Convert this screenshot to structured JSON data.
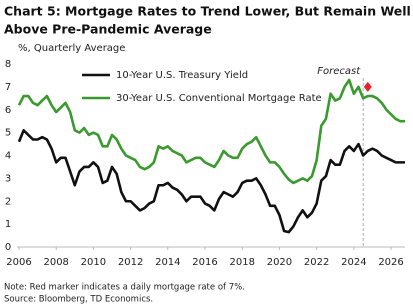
{
  "chart_data": {
    "type": "line",
    "title": [
      "Chart 5: Mortgage Rates to Trend Lower, But Remain Well",
      "Above Pre-Pandemic Average"
    ],
    "subtitle": "%, Quarterly Average",
    "notes": [
      "Note: Red marker indicates a daily mortgage rate of 7%.",
      "Source:  Bloomberg, TD Economics."
    ],
    "x": [
      2006,
      2006.25,
      2006.5,
      2006.75,
      2007,
      2007.25,
      2007.5,
      2007.75,
      2008,
      2008.25,
      2008.5,
      2008.75,
      2009,
      2009.25,
      2009.5,
      2009.75,
      2010,
      2010.25,
      2010.5,
      2010.75,
      2011,
      2011.25,
      2011.5,
      2011.75,
      2012,
      2012.25,
      2012.5,
      2012.75,
      2013,
      2013.25,
      2013.5,
      2013.75,
      2014,
      2014.25,
      2014.5,
      2014.75,
      2015,
      2015.25,
      2015.5,
      2015.75,
      2016,
      2016.25,
      2016.5,
      2016.75,
      2017,
      2017.25,
      2017.5,
      2017.75,
      2018,
      2018.25,
      2018.5,
      2018.75,
      2019,
      2019.25,
      2019.5,
      2019.75,
      2020,
      2020.25,
      2020.5,
      2020.75,
      2021,
      2021.25,
      2021.5,
      2021.75,
      2022,
      2022.25,
      2022.5,
      2022.75,
      2023,
      2023.25,
      2023.5,
      2023.75,
      2024,
      2024.25,
      2024.5,
      2024.75,
      2025,
      2025.25,
      2025.5,
      2025.75,
      2026,
      2026.25,
      2026.5,
      2026.75
    ],
    "series": [
      {
        "name": "10-Year U.S. Treasury Yield",
        "color": "#111111",
        "values": [
          4.6,
          5.1,
          4.9,
          4.7,
          4.7,
          4.8,
          4.7,
          4.3,
          3.7,
          3.9,
          3.9,
          3.3,
          2.7,
          3.3,
          3.5,
          3.5,
          3.7,
          3.5,
          2.8,
          2.9,
          3.5,
          3.2,
          2.4,
          2.0,
          2.0,
          1.8,
          1.6,
          1.7,
          1.9,
          2.0,
          2.7,
          2.7,
          2.8,
          2.6,
          2.5,
          2.3,
          2.0,
          2.2,
          2.2,
          2.2,
          1.9,
          1.8,
          1.6,
          2.1,
          2.4,
          2.3,
          2.2,
          2.4,
          2.8,
          2.9,
          2.9,
          3.0,
          2.7,
          2.3,
          1.8,
          1.8,
          1.4,
          0.7,
          0.65,
          0.9,
          1.3,
          1.6,
          1.3,
          1.5,
          1.9,
          2.9,
          3.1,
          3.8,
          3.6,
          3.6,
          4.2,
          4.4,
          4.2,
          4.5,
          4.0,
          4.2,
          4.3,
          4.2,
          4.0,
          3.9,
          3.8,
          3.7,
          3.7,
          3.7
        ]
      },
      {
        "name": "30-Year U.S. Conventional Mortgage Rate",
        "color": "#3a9a2e",
        "values": [
          6.2,
          6.6,
          6.6,
          6.3,
          6.2,
          6.4,
          6.6,
          6.2,
          5.9,
          6.1,
          6.3,
          5.9,
          5.1,
          5.0,
          5.2,
          4.9,
          5.0,
          4.9,
          4.4,
          4.4,
          4.9,
          4.7,
          4.3,
          4.0,
          3.9,
          3.8,
          3.5,
          3.4,
          3.5,
          3.7,
          4.4,
          4.3,
          4.4,
          4.2,
          4.1,
          4.0,
          3.7,
          3.8,
          3.9,
          3.9,
          3.7,
          3.6,
          3.5,
          3.8,
          4.2,
          4.0,
          3.9,
          3.9,
          4.3,
          4.5,
          4.6,
          4.8,
          4.4,
          4.0,
          3.7,
          3.7,
          3.5,
          3.2,
          2.95,
          2.8,
          2.9,
          3.0,
          2.9,
          3.1,
          3.8,
          5.3,
          5.6,
          6.7,
          6.4,
          6.5,
          7.0,
          7.3,
          6.7,
          7.0,
          6.5,
          6.6,
          6.6,
          6.5,
          6.3,
          6.0,
          5.8,
          5.6,
          5.5,
          5.5
        ]
      }
    ],
    "forecast": {
      "label": "Forecast",
      "x": 2024.5
    },
    "marker": {
      "x": 2024.75,
      "y": 7,
      "color": "#e8202a"
    },
    "xlim": [
      2006,
      2026.75
    ],
    "xticks": [
      2006,
      2008,
      2010,
      2012,
      2014,
      2016,
      2018,
      2020,
      2022,
      2024,
      2026
    ],
    "ylim": [
      0,
      8
    ],
    "yticks": [
      0,
      1,
      2,
      3,
      4,
      5,
      6,
      7,
      8
    ],
    "grid": false
  }
}
